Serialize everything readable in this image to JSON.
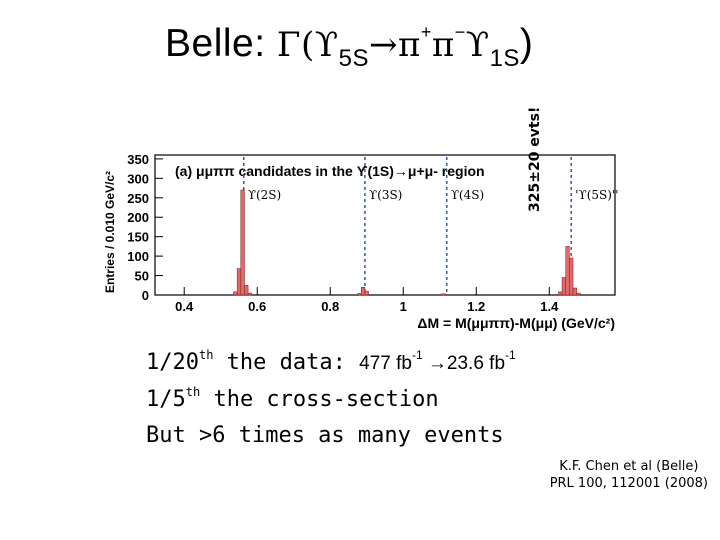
{
  "slide": {
    "title_prefix": "Belle: ",
    "title_gamma": "Γ(ϒ",
    "title_sub1": "5S",
    "title_arrow": "→",
    "title_pi1": "π",
    "title_sup1": "+",
    "title_pi2": "π",
    "title_sup2": "−",
    "title_ups": "ϒ",
    "title_sub2": "1S",
    "title_close": ")",
    "events_label": "325±20 evts!",
    "line1_a": "1/20",
    "line1_sup": "th",
    "line1_b": " the data: ",
    "line1_c": "477 fb",
    "line1_sup2": "-1",
    "line1_d": " →23.6 fb",
    "line1_sup3": "-1",
    "line2_a": "1/5",
    "line2_sup": "th",
    "line2_b": " the cross-section",
    "line3": "But  >6 times as many events",
    "cite1": "K.F. Chen et al (Belle)",
    "cite2": "PRL 100, 112001 (2008)"
  },
  "chart_data": {
    "type": "bar",
    "inner_title": "(a) μμππ candidates in the ϒ(1S)→μ+μ- region",
    "xlabel": "ΔM = M(μμππ)-M(μμ) (GeV/c²)",
    "ylabel": "Entries / 0.010 GeV/c²",
    "xlim": [
      0.32,
      1.58
    ],
    "ylim": [
      0,
      360
    ],
    "xticks": [
      "0.4",
      "0.6",
      "0.8",
      "1",
      "1.2",
      "1.4"
    ],
    "yticks": [
      "0",
      "50",
      "100",
      "150",
      "200",
      "250",
      "300",
      "350"
    ],
    "bar_color": "#e06a6a",
    "bin_width": 0.01,
    "bins": [
      {
        "x": 0.54,
        "y": 8
      },
      {
        "x": 0.55,
        "y": 68
      },
      {
        "x": 0.56,
        "y": 270
      },
      {
        "x": 0.57,
        "y": 25
      },
      {
        "x": 0.58,
        "y": 5
      },
      {
        "x": 0.88,
        "y": 4
      },
      {
        "x": 0.89,
        "y": 20
      },
      {
        "x": 0.9,
        "y": 10
      },
      {
        "x": 1.11,
        "y": 3
      },
      {
        "x": 1.43,
        "y": 8
      },
      {
        "x": 1.44,
        "y": 45
      },
      {
        "x": 1.45,
        "y": 125
      },
      {
        "x": 1.46,
        "y": 95
      },
      {
        "x": 1.47,
        "y": 18
      },
      {
        "x": 1.48,
        "y": 5
      }
    ],
    "markers": [
      {
        "x": 0.563,
        "label": "ϒ(2S)"
      },
      {
        "x": 0.895,
        "label": "ϒ(3S)"
      },
      {
        "x": 1.119,
        "label": "ϒ(4S)"
      },
      {
        "x": 1.46,
        "label": "'ϒ(5S)'' "
      }
    ]
  }
}
